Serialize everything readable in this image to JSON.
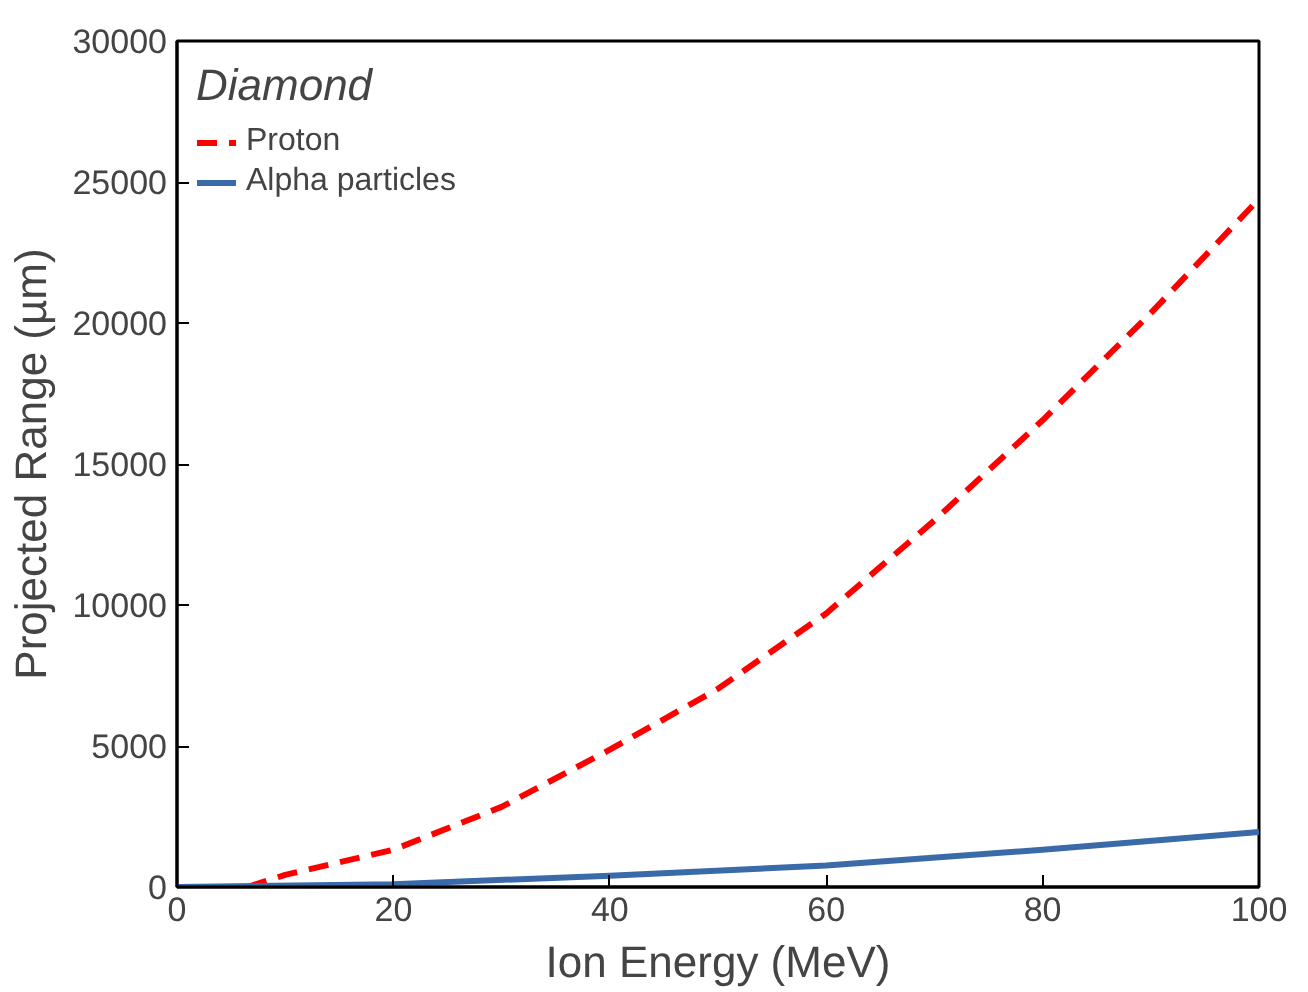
{
  "chart_data": {
    "type": "line",
    "xlabel": "Ion Energy (MeV)",
    "ylabel": "Projected Range (µm)",
    "legend_title": "Diamond",
    "legend": "top left",
    "grid": false,
    "xlim": [
      0,
      100
    ],
    "ylim": [
      0,
      30000
    ],
    "xticks": [
      0,
      20,
      40,
      60,
      80,
      100
    ],
    "yticks": [
      0,
      5000,
      10000,
      15000,
      20000,
      25000,
      30000
    ],
    "series": [
      {
        "name": "Proton",
        "color": "#ff0000",
        "line_style": "dashed",
        "x": [
          6.5,
          10,
          20,
          30,
          40,
          50,
          60,
          70,
          80,
          90,
          100
        ],
        "values": [
          0,
          430,
          1320,
          2840,
          4870,
          7030,
          9700,
          13000,
          16550,
          20350,
          24400
        ]
      },
      {
        "name": "Alpha particles",
        "color": "#3a6aa8",
        "line_style": "solid",
        "x": [
          0,
          20,
          40,
          60,
          80,
          100
        ],
        "values": [
          0,
          100,
          400,
          760,
          1320,
          1950
        ]
      }
    ]
  }
}
